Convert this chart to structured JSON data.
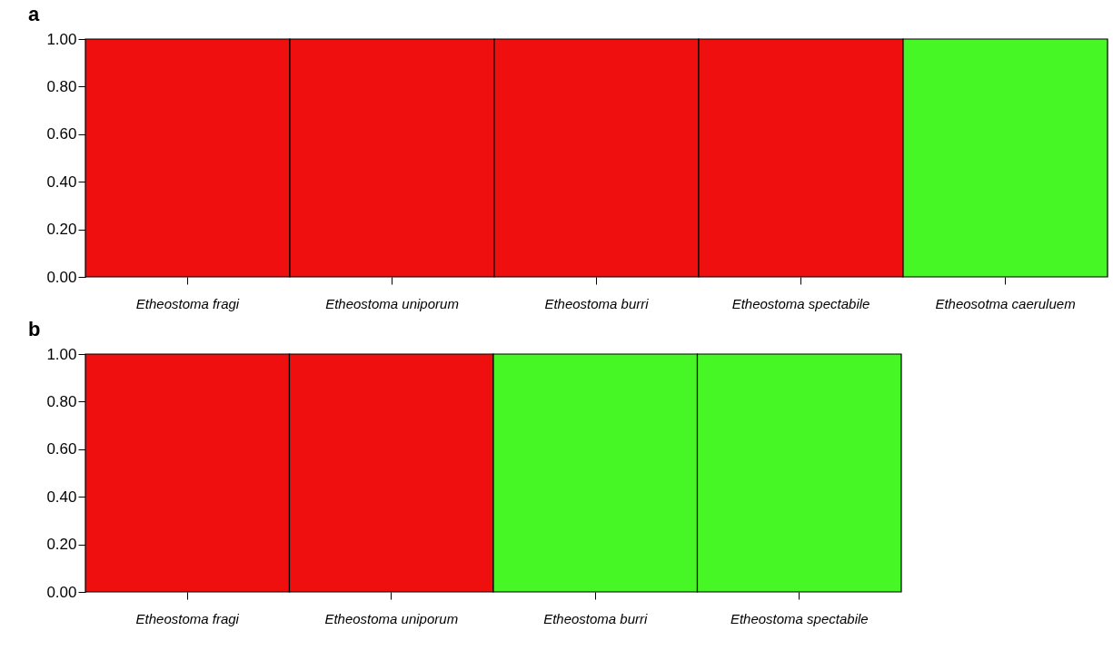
{
  "chart_data": [
    {
      "type": "bar",
      "title": "a",
      "categories": [
        "Etheostoma fragi",
        "Etheostoma uniporum",
        "Etheostoma burri",
        "Etheostoma spectabile",
        "Etheosotma caeruluem"
      ],
      "values": [
        1,
        1,
        1,
        1,
        1
      ],
      "colors": [
        "#f00f0f",
        "#f00f0f",
        "#f00f0f",
        "#f00f0f",
        "#47f625"
      ],
      "ylim": [
        0,
        1
      ],
      "yticks": [
        {
          "value": 0,
          "label": "0.00"
        },
        {
          "value": 0.2,
          "label": "0.20"
        },
        {
          "value": 0.4,
          "label": "0.40"
        },
        {
          "value": 0.6,
          "label": "0.60"
        },
        {
          "value": 0.8,
          "label": "0.80"
        },
        {
          "value": 1,
          "label": "1.00"
        }
      ],
      "grid": false,
      "legend": false
    },
    {
      "type": "bar",
      "title": "b",
      "categories": [
        "Etheostoma fragi",
        "Etheostoma uniporum",
        "Etheostoma burri",
        "Etheostoma spectabile"
      ],
      "values": [
        1,
        1,
        1,
        1
      ],
      "colors": [
        "#f00f0f",
        "#f00f0f",
        "#47f625",
        "#47f625"
      ],
      "ylim": [
        0,
        1
      ],
      "yticks": [
        {
          "value": 0,
          "label": "0.00"
        },
        {
          "value": 0.2,
          "label": "0.20"
        },
        {
          "value": 0.4,
          "label": "0.40"
        },
        {
          "value": 0.6,
          "label": "0.60"
        },
        {
          "value": 0.8,
          "label": "0.80"
        },
        {
          "value": 1,
          "label": "1.00"
        }
      ],
      "grid": false,
      "legend": false
    }
  ]
}
